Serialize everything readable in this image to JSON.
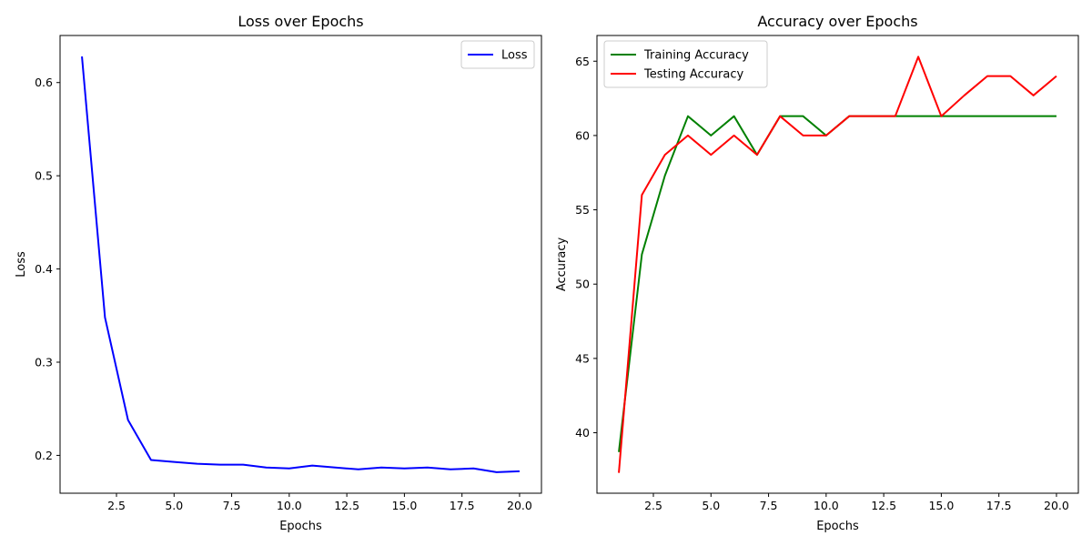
{
  "chart_data": [
    {
      "type": "line",
      "title": "Loss over Epochs",
      "xlabel": "Epochs",
      "ylabel": "Loss",
      "x": [
        1,
        2,
        3,
        4,
        5,
        6,
        7,
        8,
        9,
        10,
        11,
        12,
        13,
        14,
        15,
        16,
        17,
        18,
        19,
        20
      ],
      "xlim": [
        0.05,
        20.95
      ],
      "ylim": [
        0.1594,
        0.6505
      ],
      "xticks": [
        2.5,
        5.0,
        7.5,
        10.0,
        12.5,
        15.0,
        17.5,
        20.0
      ],
      "xtick_labels": [
        "2.5",
        "5.0",
        "7.5",
        "10.0",
        "12.5",
        "15.0",
        "17.5",
        "20.0"
      ],
      "yticks": [
        0.2,
        0.3,
        0.4,
        0.5,
        0.6
      ],
      "ytick_labels": [
        "0.2",
        "0.3",
        "0.4",
        "0.5",
        "0.6"
      ],
      "legend_position": "top-right",
      "grid": false,
      "series": [
        {
          "name": "Loss",
          "color": "#0000ff",
          "values": [
            0.628,
            0.348,
            0.238,
            0.195,
            0.193,
            0.191,
            0.19,
            0.19,
            0.187,
            0.186,
            0.189,
            0.187,
            0.185,
            0.187,
            0.186,
            0.187,
            0.185,
            0.186,
            0.182,
            0.183
          ]
        }
      ]
    },
    {
      "type": "line",
      "title": "Accuracy over Epochs",
      "xlabel": "Epochs",
      "ylabel": "Accuracy",
      "x": [
        1,
        2,
        3,
        4,
        5,
        6,
        7,
        8,
        9,
        10,
        11,
        12,
        13,
        14,
        15,
        16,
        17,
        18,
        19,
        20
      ],
      "xlim": [
        0.05,
        20.95
      ],
      "ylim": [
        35.93,
        66.73
      ],
      "xticks": [
        2.5,
        5.0,
        7.5,
        10.0,
        12.5,
        15.0,
        17.5,
        20.0
      ],
      "xtick_labels": [
        "2.5",
        "5.0",
        "7.5",
        "10.0",
        "12.5",
        "15.0",
        "17.5",
        "20.0"
      ],
      "yticks": [
        40,
        45,
        50,
        55,
        60,
        65
      ],
      "ytick_labels": [
        "40",
        "45",
        "50",
        "55",
        "60",
        "65"
      ],
      "legend_position": "top-left",
      "grid": false,
      "series": [
        {
          "name": "Training Accuracy",
          "color": "#008000",
          "values": [
            38.7,
            52.0,
            57.3,
            61.3,
            60.0,
            61.3,
            58.7,
            61.3,
            61.3,
            60.0,
            61.3,
            61.3,
            61.3,
            61.3,
            61.3,
            61.3,
            61.3,
            61.3,
            61.3,
            61.3
          ]
        },
        {
          "name": "Testing Accuracy",
          "color": "#ff0000",
          "values": [
            37.3,
            56.0,
            58.7,
            60.0,
            58.7,
            60.0,
            58.7,
            61.3,
            60.0,
            60.0,
            61.3,
            61.3,
            61.3,
            65.3,
            61.3,
            62.7,
            64.0,
            64.0,
            62.7,
            64.0
          ]
        }
      ]
    }
  ]
}
